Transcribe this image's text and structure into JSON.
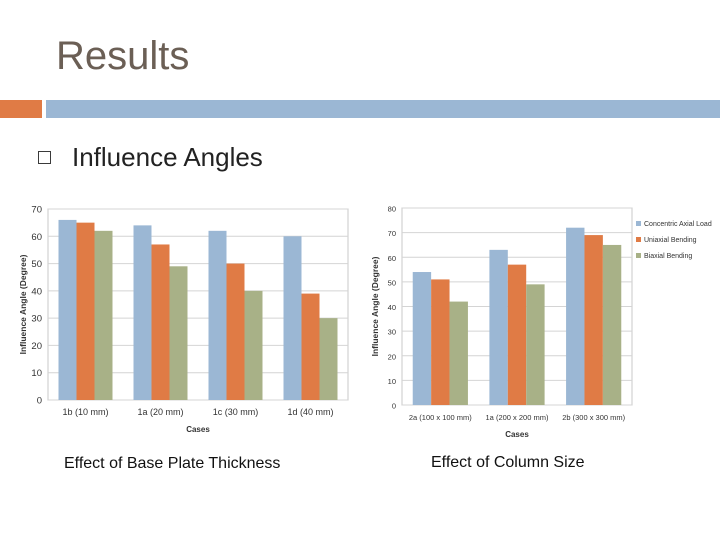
{
  "slide": {
    "title": "Results",
    "bullet": "Influence Angles",
    "caption_left": "Effect of Base Plate Thickness",
    "caption_right": "Effect of Column Size"
  },
  "colors": {
    "header_orange": "#e07b45",
    "header_blue": "#9bb7d4",
    "series_blue": "#9bb7d4",
    "series_orange": "#e07b45",
    "series_green": "#a8b187",
    "title_text": "#6b5f55"
  },
  "chart_data": [
    {
      "type": "bar",
      "title": "",
      "xlabel": "Cases",
      "ylabel": "Influence Angle (Degree)",
      "ylim": [
        0,
        70
      ],
      "yticks": [
        0,
        10,
        20,
        30,
        40,
        50,
        60,
        70
      ],
      "grid": true,
      "legend": "none",
      "categories": [
        "1b (10 mm)",
        "1a (20 mm)",
        "1c (30 mm)",
        "1d (40 mm)"
      ],
      "series": [
        {
          "values": [
            66,
            64,
            62,
            60
          ]
        },
        {
          "values": [
            65,
            57,
            50,
            39
          ]
        },
        {
          "values": [
            62,
            49,
            40,
            30
          ]
        }
      ]
    },
    {
      "type": "bar",
      "title": "",
      "xlabel": "Cases",
      "ylabel": "Influence Angle (Degree)",
      "ylim": [
        0,
        80
      ],
      "yticks": [
        0,
        10,
        20,
        30,
        40,
        50,
        60,
        70,
        80
      ],
      "grid": true,
      "legend": "right",
      "categories": [
        "2a (100 x 100 mm)",
        "1a (200 x 200 mm)",
        "2b (300 x 300 mm)"
      ],
      "series": [
        {
          "name": "Concentric Axial Load",
          "values": [
            54,
            63,
            72
          ]
        },
        {
          "name": "Uniaxial Bending",
          "values": [
            51,
            57,
            69
          ]
        },
        {
          "name": "Biaxial Bending",
          "values": [
            42,
            49,
            65
          ]
        }
      ]
    }
  ]
}
